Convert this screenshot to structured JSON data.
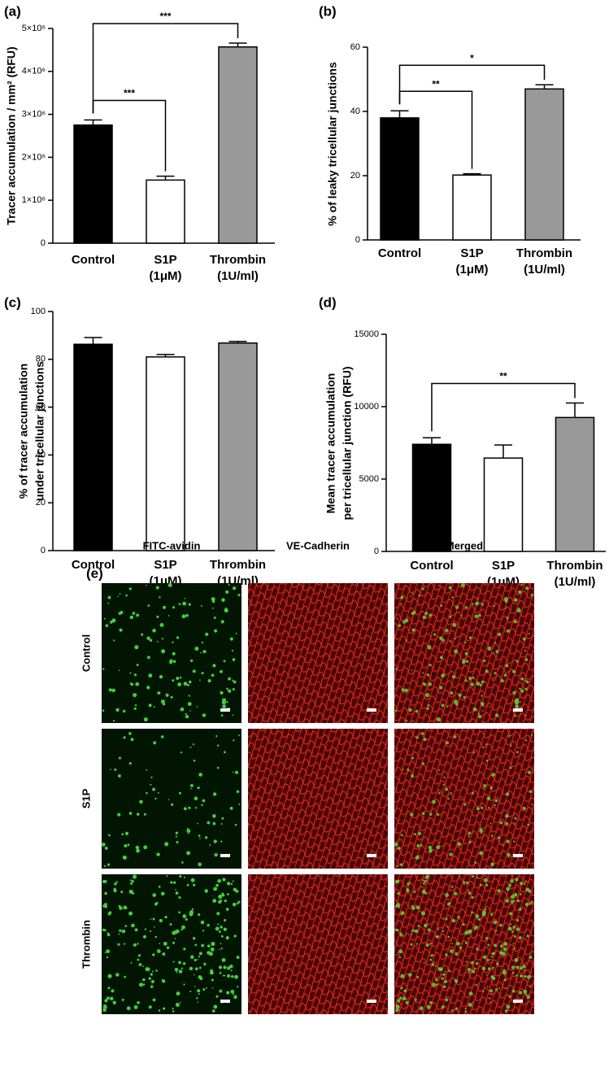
{
  "chart_data": [
    {
      "type": "bar",
      "panel": "(a)",
      "ylabel": [
        "Tracer accumulation / mm² (RFU)"
      ],
      "categories": [
        [
          "Control"
        ],
        [
          "S1P",
          "(1μM)"
        ],
        [
          "Thrombin",
          "(1U/ml)"
        ]
      ],
      "values": [
        2750000,
        1470000,
        4570000
      ],
      "errors": [
        120000,
        90000,
        90000
      ],
      "colors": [
        "#000000",
        "#ffffff",
        "#999999"
      ],
      "ylim": [
        0,
        5000000
      ],
      "yticks": [
        0,
        {
          "value": 1000000,
          "label": "1×10⁶"
        },
        {
          "value": 2000000,
          "label": "2×10⁶"
        },
        {
          "value": 3000000,
          "label": "3×10⁶"
        },
        {
          "value": 4000000,
          "label": "4×10⁶"
        },
        {
          "value": 5000000,
          "label": "5×10⁶"
        }
      ],
      "brackets": [
        {
          "from": 0,
          "to": 1,
          "label": "***"
        },
        {
          "from": 0,
          "to": 2,
          "label": "***"
        }
      ]
    },
    {
      "type": "bar",
      "panel": "(b)",
      "ylabel": [
        "% of leaky tricellular junctions"
      ],
      "categories": [
        [
          "Control"
        ],
        [
          "S1P",
          "(1μM)"
        ],
        [
          "Thrombin",
          "(1U/ml)"
        ]
      ],
      "values": [
        38,
        20.2,
        47
      ],
      "errors": [
        2.2,
        0.4,
        1.3
      ],
      "colors": [
        "#000000",
        "#ffffff",
        "#999999"
      ],
      "ylim": [
        0,
        60
      ],
      "yticks": [
        0,
        20,
        40,
        60
      ],
      "brackets": [
        {
          "from": 0,
          "to": 1,
          "label": "**"
        },
        {
          "from": 0,
          "to": 2,
          "label": "*"
        }
      ]
    },
    {
      "type": "bar",
      "panel": "(c)",
      "ylabel": [
        "% of tracer accumulation",
        "under tricellular junctions"
      ],
      "categories": [
        [
          "Control"
        ],
        [
          "S1P",
          "(1μM)"
        ],
        [
          "Thrombin",
          "(1U/ml)"
        ]
      ],
      "values": [
        86.3,
        81,
        86.8
      ],
      "errors": [
        2.8,
        1,
        0.7
      ],
      "colors": [
        "#000000",
        "#ffffff",
        "#999999"
      ],
      "ylim": [
        0,
        100
      ],
      "yticks": [
        0,
        20,
        40,
        60,
        80,
        100
      ],
      "brackets": []
    },
    {
      "type": "bar",
      "panel": "(d)",
      "ylabel": [
        "Mean tracer accumulation",
        "per tricellular junction (RFU)"
      ],
      "categories": [
        [
          "Control"
        ],
        [
          "S1P",
          "(1μM)"
        ],
        [
          "Thrombin",
          "(1U/ml)"
        ]
      ],
      "values": [
        7400,
        6450,
        9250
      ],
      "errors": [
        450,
        900,
        1000
      ],
      "colors": [
        "#000000",
        "#ffffff",
        "#999999"
      ],
      "ylim": [
        0,
        15000
      ],
      "yticks": [
        0,
        5000,
        10000,
        15000
      ],
      "brackets": [
        {
          "from": 0,
          "to": 2,
          "label": "**"
        }
      ]
    }
  ],
  "image_grid": {
    "panel": "(e)",
    "columns": [
      "FITC-avidin",
      "VE-Cadherin",
      "Merged"
    ],
    "rows": [
      "Control",
      "S1P",
      "Thrombin"
    ]
  }
}
